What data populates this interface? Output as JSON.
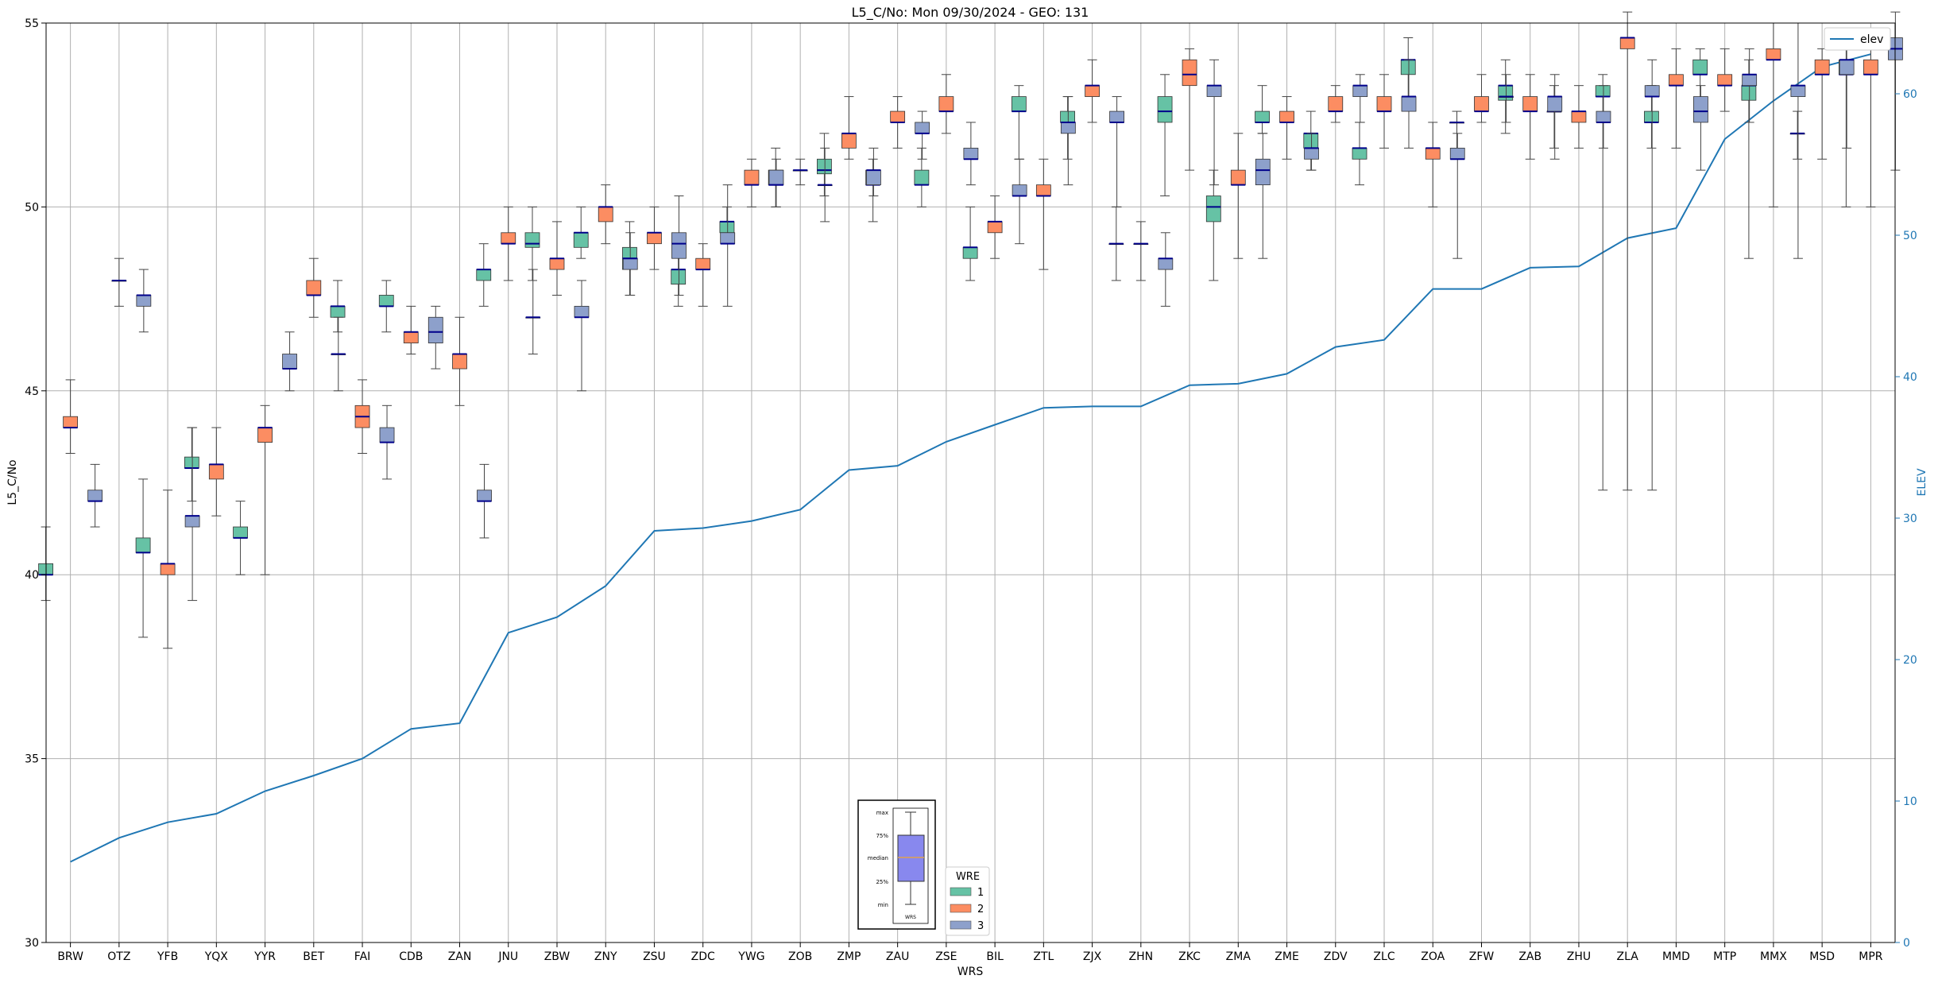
{
  "chart_data": {
    "type": "box",
    "title": "L5_C/No: Mon 09/30/2024 - GEO: 131",
    "xlabel": "WRS",
    "ylabel": "L5_C/No",
    "y2label": "ELEV",
    "ylim": [
      30,
      55
    ],
    "y2lim": [
      0,
      65
    ],
    "yticks": [
      30,
      35,
      40,
      45,
      50,
      55
    ],
    "y2ticks": [
      0,
      10,
      20,
      30,
      40,
      50,
      60
    ],
    "grid": true,
    "categories": [
      "BRW",
      "OTZ",
      "YFB",
      "YQX",
      "YYR",
      "BET",
      "FAI",
      "CDB",
      "ZAN",
      "JNU",
      "ZBW",
      "ZNY",
      "ZSU",
      "ZDC",
      "YWG",
      "ZOB",
      "ZMP",
      "ZAU",
      "ZSE",
      "BIL",
      "ZTL",
      "ZJX",
      "ZHN",
      "ZKC",
      "ZMA",
      "ZME",
      "ZDV",
      "ZLC",
      "ZOA",
      "ZFW",
      "ZAB",
      "ZHU",
      "ZLA",
      "MMD",
      "MTP",
      "MMX",
      "MSD",
      "MPR"
    ],
    "series": [
      {
        "name": "1",
        "color": "#66c2a5",
        "boxes": [
          [
            39.3,
            40.0,
            40.0,
            40.3,
            41.3
          ],
          null,
          [
            38.3,
            40.6,
            40.6,
            41.0,
            42.6
          ],
          [
            42.0,
            42.9,
            42.9,
            43.2,
            44.0
          ],
          [
            40.0,
            41.0,
            41.0,
            41.3,
            42.0
          ],
          null,
          [
            46.6,
            47.0,
            47.3,
            47.3,
            48.0
          ],
          [
            46.6,
            47.3,
            47.3,
            47.6,
            48.0
          ],
          null,
          [
            47.3,
            48.0,
            48.3,
            48.3,
            49.0
          ],
          [
            48.0,
            48.9,
            49.0,
            49.3,
            50.0
          ],
          [
            48.6,
            48.9,
            49.3,
            49.3,
            50.0
          ],
          [
            47.6,
            48.3,
            48.6,
            48.9,
            49.6
          ],
          [
            47.3,
            47.9,
            48.3,
            48.3,
            49.0
          ],
          [
            49.0,
            49.3,
            49.6,
            49.6,
            50.0
          ],
          [
            50.0,
            50.6,
            50.6,
            51.0,
            51.6
          ],
          [
            50.3,
            50.9,
            51.0,
            51.3,
            52.0
          ],
          [
            49.6,
            50.6,
            50.6,
            51.0,
            51.3
          ],
          [
            50.0,
            50.6,
            50.6,
            51.0,
            51.6
          ],
          [
            48.0,
            48.6,
            48.9,
            48.9,
            50.0
          ],
          [
            51.3,
            52.6,
            52.6,
            53.0,
            53.3
          ],
          [
            51.3,
            52.3,
            52.3,
            52.6,
            53.0
          ],
          [
            48.0,
            49.0,
            49.0,
            49.0,
            50.0
          ],
          [
            50.3,
            52.3,
            52.6,
            53.0,
            53.6
          ],
          [
            48.0,
            49.6,
            50.0,
            50.3,
            51.0
          ],
          [
            52.0,
            52.3,
            52.3,
            52.6,
            53.3
          ],
          [
            51.0,
            51.6,
            52.0,
            52.0,
            52.6
          ],
          [
            50.6,
            51.3,
            51.6,
            51.6,
            52.3
          ],
          [
            53.0,
            53.6,
            54.0,
            54.0,
            54.6
          ],
          [
            51.3,
            52.3,
            52.3,
            52.3,
            52.6
          ],
          [
            52.0,
            52.9,
            53.3,
            53.3,
            54.0
          ],
          [
            51.6,
            52.6,
            52.6,
            52.6,
            53.3
          ],
          [
            42.3,
            53.0,
            53.0,
            53.3,
            53.6
          ],
          [
            51.6,
            52.3,
            52.3,
            52.6,
            53.3
          ],
          [
            52.6,
            53.6,
            53.6,
            54.0,
            54.3
          ],
          [
            48.6,
            52.9,
            53.3,
            53.3,
            54.0
          ],
          [
            51.3,
            52.0,
            52.0,
            52.0,
            52.6
          ],
          [
            50.0,
            53.6,
            53.6,
            54.0,
            54.3
          ]
        ]
      },
      {
        "name": "2",
        "color": "#fc8d62",
        "boxes": [
          [
            43.3,
            44.0,
            44.0,
            44.3,
            45.3
          ],
          [
            47.3,
            48.0,
            48.0,
            48.0,
            48.6
          ],
          [
            38.0,
            40.0,
            40.3,
            40.3,
            42.3
          ],
          [
            41.6,
            42.6,
            43.0,
            43.0,
            44.0
          ],
          [
            40.0,
            43.6,
            44.0,
            44.0,
            44.6
          ],
          [
            47.0,
            47.6,
            47.6,
            48.0,
            48.6
          ],
          [
            43.3,
            44.0,
            44.3,
            44.6,
            45.3
          ],
          [
            46.0,
            46.3,
            46.6,
            46.6,
            47.3
          ],
          [
            44.6,
            45.6,
            46.0,
            46.0,
            47.0
          ],
          [
            48.0,
            49.0,
            49.0,
            49.3,
            50.0
          ],
          [
            47.6,
            48.3,
            48.6,
            48.6,
            49.6
          ],
          [
            49.0,
            49.6,
            50.0,
            50.0,
            50.6
          ],
          [
            48.3,
            49.0,
            49.3,
            49.3,
            50.0
          ],
          [
            47.3,
            48.3,
            48.3,
            48.6,
            49.0
          ],
          [
            50.0,
            50.6,
            50.6,
            51.0,
            51.3
          ],
          [
            50.6,
            51.0,
            51.0,
            51.0,
            51.3
          ],
          [
            51.3,
            51.6,
            52.0,
            52.0,
            53.0
          ],
          [
            51.6,
            52.3,
            52.3,
            52.6,
            53.0
          ],
          [
            52.0,
            52.6,
            52.6,
            53.0,
            53.6
          ],
          [
            48.6,
            49.3,
            49.6,
            49.6,
            50.3
          ],
          [
            48.3,
            50.3,
            50.3,
            50.6,
            51.3
          ],
          [
            52.3,
            53.0,
            53.3,
            53.3,
            54.0
          ],
          [
            48.0,
            49.0,
            49.0,
            49.0,
            49.6
          ],
          [
            51.0,
            53.3,
            53.6,
            54.0,
            54.3
          ],
          [
            48.6,
            50.6,
            50.6,
            51.0,
            52.0
          ],
          [
            51.3,
            52.3,
            52.3,
            52.6,
            53.0
          ],
          [
            52.3,
            52.6,
            52.6,
            53.0,
            53.3
          ],
          [
            51.6,
            52.6,
            52.6,
            53.0,
            53.6
          ],
          [
            50.0,
            51.3,
            51.6,
            51.6,
            52.3
          ],
          [
            52.3,
            52.6,
            52.6,
            53.0,
            53.6
          ],
          [
            51.3,
            52.6,
            52.6,
            53.0,
            53.6
          ],
          [
            51.6,
            52.3,
            52.6,
            52.6,
            53.3
          ],
          [
            42.3,
            54.3,
            54.6,
            54.6,
            55.3
          ],
          [
            51.6,
            53.3,
            53.3,
            53.6,
            54.3
          ],
          [
            52.6,
            53.3,
            53.3,
            53.6,
            54.3
          ],
          [
            50.0,
            54.0,
            54.0,
            54.3,
            55.0
          ],
          [
            51.3,
            53.6,
            53.6,
            54.0,
            54.3
          ],
          [
            50.0,
            53.6,
            53.6,
            54.0,
            54.3
          ]
        ]
      },
      {
        "name": "3",
        "color": "#8da0cb",
        "boxes": [
          [
            41.3,
            42.0,
            42.0,
            42.3,
            43.0
          ],
          [
            46.6,
            47.3,
            47.6,
            47.6,
            48.3
          ],
          [
            39.3,
            41.3,
            41.6,
            41.6,
            44.0
          ],
          null,
          [
            45.0,
            45.6,
            45.6,
            46.0,
            46.6
          ],
          [
            45.0,
            46.0,
            46.0,
            46.0,
            47.0
          ],
          [
            42.6,
            43.6,
            43.6,
            44.0,
            44.6
          ],
          [
            45.6,
            46.3,
            46.6,
            47.0,
            47.3
          ],
          [
            41.0,
            42.0,
            42.0,
            42.3,
            43.0
          ],
          [
            46.0,
            47.0,
            47.0,
            47.0,
            48.3
          ],
          [
            45.0,
            47.0,
            47.0,
            47.3,
            48.0
          ],
          [
            47.6,
            48.3,
            48.6,
            48.6,
            49.3
          ],
          [
            47.6,
            48.6,
            49.0,
            49.3,
            50.3
          ],
          [
            47.3,
            49.0,
            49.0,
            49.3,
            50.6
          ],
          [
            50.0,
            50.6,
            50.6,
            51.0,
            51.3
          ],
          [
            49.6,
            50.6,
            50.6,
            50.6,
            51.6
          ],
          [
            50.3,
            50.6,
            51.0,
            51.0,
            51.6
          ],
          [
            51.3,
            52.0,
            52.0,
            52.3,
            52.6
          ],
          [
            50.6,
            51.3,
            51.3,
            51.6,
            52.3
          ],
          [
            49.0,
            50.3,
            50.3,
            50.6,
            51.3
          ],
          [
            50.6,
            52.0,
            52.3,
            52.3,
            53.0
          ],
          [
            50.0,
            52.3,
            52.3,
            52.6,
            53.0
          ],
          [
            47.3,
            48.3,
            48.6,
            48.6,
            49.3
          ],
          [
            50.6,
            53.0,
            53.3,
            53.3,
            54.0
          ],
          [
            48.6,
            50.6,
            51.0,
            51.3,
            52.0
          ],
          [
            51.0,
            51.3,
            51.6,
            51.6,
            52.0
          ],
          [
            52.3,
            53.0,
            53.3,
            53.3,
            53.6
          ],
          [
            51.6,
            52.6,
            53.0,
            53.0,
            54.0
          ],
          [
            48.6,
            51.3,
            51.3,
            51.6,
            52.0
          ],
          [
            52.3,
            53.0,
            53.0,
            53.0,
            53.6
          ],
          [
            51.3,
            52.6,
            53.0,
            53.0,
            53.6
          ],
          [
            51.6,
            52.3,
            52.3,
            52.6,
            53.3
          ],
          [
            42.3,
            53.0,
            53.0,
            53.3,
            54.0
          ],
          [
            51.0,
            52.3,
            52.6,
            53.0,
            53.3
          ],
          [
            52.3,
            53.3,
            53.6,
            53.6,
            54.3
          ],
          [
            48.6,
            53.0,
            53.3,
            53.3,
            55.0
          ],
          [
            51.6,
            53.6,
            54.0,
            54.0,
            54.6
          ],
          [
            51.0,
            54.0,
            54.3,
            54.6,
            55.3
          ]
        ]
      }
    ],
    "elev": {
      "name": "elev",
      "color": "#1f77b4",
      "values": [
        5.7,
        7.4,
        8.5,
        9.1,
        10.7,
        11.8,
        13.0,
        15.1,
        15.5,
        21.9,
        23.0,
        25.2,
        29.1,
        29.3,
        29.8,
        30.6,
        33.4,
        33.7,
        35.4,
        36.6,
        37.8,
        37.9,
        37.9,
        39.4,
        39.5,
        40.2,
        42.1,
        42.6,
        46.2,
        46.2,
        47.7,
        47.8,
        49.8,
        50.5,
        56.8,
        59.5,
        61.9,
        62.8
      ]
    },
    "legend": {
      "title": "WRE",
      "placement": "bottom-center",
      "entries": [
        "1",
        "2",
        "3"
      ]
    },
    "elev_legend": {
      "label": "elev",
      "placement": "top-right"
    },
    "key_box": {
      "labels": [
        "max",
        "75%",
        "median",
        "25%",
        "min"
      ],
      "xlabel": "WRS",
      "box_color": "#8888ee",
      "median_color": "#e0a050"
    }
  }
}
